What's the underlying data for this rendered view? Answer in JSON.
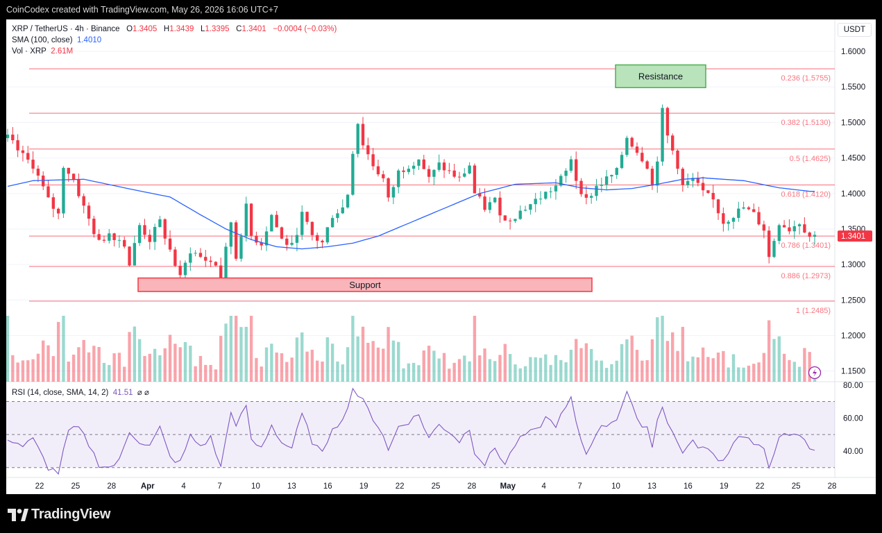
{
  "header": {
    "credit": "CoinCodex created with TradingView.com, May 26, 2026 16:06 UTC+7"
  },
  "legend": {
    "symbol": "XRP / TetherUS · 4h · Binance",
    "o_label": "O",
    "o_value": "1.3405",
    "h_label": "H",
    "h_value": "1.3439",
    "l_label": "L",
    "l_value": "1.3395",
    "c_label": "C",
    "c_value": "1.3401",
    "change": "−0.0004 (−0.03%)",
    "sma_label": "SMA (100, close)",
    "sma_value": "1.4010",
    "vol_label": "Vol · XRP",
    "vol_value": "2.61M"
  },
  "currency": "USDT",
  "rsi_legend": {
    "label": "RSI (14, close, SMA, 14, 2)",
    "value": "41.51",
    "extra": "⌀ ⌀"
  },
  "branding": {
    "logo_text": "TradingView",
    "logo_icon": "tradingview-logo-icon"
  },
  "colors": {
    "up": "#22ab94",
    "down": "#f23645",
    "sma": "#2962ff",
    "rsi": "#7e57c2",
    "fib": "#f7525f",
    "support": "#f23645",
    "resistance": "#4caf50"
  },
  "chart_data": {
    "type": "candlestick",
    "timeframe": "4h",
    "price_axis": {
      "ticks": [
        "1.6000",
        "1.5500",
        "1.5000",
        "1.4500",
        "1.4000",
        "1.3500",
        "1.3000",
        "1.2500",
        "1.2000",
        "1.1500"
      ],
      "range": [
        1.135,
        1.645
      ]
    },
    "last_price": "1.3401",
    "x_ticks": [
      "22",
      "25",
      "28",
      "Apr",
      "4",
      "7",
      "10",
      "13",
      "16",
      "19",
      "22",
      "25",
      "28",
      "May",
      "4",
      "7",
      "10",
      "13",
      "16",
      "19",
      "22",
      "25",
      "28"
    ],
    "fib_levels": [
      {
        "label": "0.236 (1.5755)",
        "value": 1.5755
      },
      {
        "label": "0.382 (1.5130)",
        "value": 1.513
      },
      {
        "label": "0.5 (1.4625)",
        "value": 1.4625
      },
      {
        "label": "0.618 (1.4120)",
        "value": 1.412
      },
      {
        "label": "0.786 (1.3401)",
        "value": 1.3401
      },
      {
        "label": "0.886 (1.2973)",
        "value": 1.2973
      },
      {
        "label": "1 (1.2485)",
        "value": 1.2485
      }
    ],
    "zones": [
      {
        "label": "Resistance",
        "top": 1.581,
        "bottom": 1.549
      },
      {
        "label": "Support",
        "top": 1.281,
        "bottom": 1.262
      }
    ],
    "close_path": [
      [
        0,
        1.478
      ],
      [
        3,
        1.452
      ],
      [
        5,
        1.44
      ],
      [
        8,
        1.39
      ],
      [
        10,
        1.37
      ],
      [
        11,
        1.44
      ],
      [
        13,
        1.42
      ],
      [
        15,
        1.38
      ],
      [
        18,
        1.33
      ],
      [
        20,
        1.345
      ],
      [
        23,
        1.33
      ],
      [
        24,
        1.3
      ],
      [
        26,
        1.355
      ],
      [
        28,
        1.335
      ],
      [
        30,
        1.36
      ],
      [
        33,
        1.3
      ],
      [
        34,
        1.28
      ],
      [
        36,
        1.32
      ],
      [
        38,
        1.31
      ],
      [
        41,
        1.3
      ],
      [
        42,
        1.28
      ],
      [
        44,
        1.36
      ],
      [
        45,
        1.31
      ],
      [
        47,
        1.38
      ],
      [
        48,
        1.34
      ],
      [
        50,
        1.33
      ],
      [
        52,
        1.37
      ],
      [
        54,
        1.335
      ],
      [
        56,
        1.325
      ],
      [
        58,
        1.37
      ],
      [
        60,
        1.34
      ],
      [
        62,
        1.33
      ],
      [
        64,
        1.37
      ],
      [
        66,
        1.38
      ],
      [
        67,
        1.4
      ],
      [
        68,
        1.46
      ],
      [
        69,
        1.5
      ],
      [
        70,
        1.47
      ],
      [
        72,
        1.44
      ],
      [
        74,
        1.42
      ],
      [
        75,
        1.39
      ],
      [
        77,
        1.43
      ],
      [
        79,
        1.44
      ],
      [
        81,
        1.45
      ],
      [
        83,
        1.42
      ],
      [
        85,
        1.44
      ],
      [
        87,
        1.43
      ],
      [
        89,
        1.42
      ],
      [
        91,
        1.44
      ],
      [
        92,
        1.4
      ],
      [
        94,
        1.38
      ],
      [
        96,
        1.39
      ],
      [
        98,
        1.36
      ],
      [
        100,
        1.37
      ],
      [
        102,
        1.38
      ],
      [
        104,
        1.39
      ],
      [
        106,
        1.4
      ],
      [
        108,
        1.41
      ],
      [
        110,
        1.43
      ],
      [
        111,
        1.45
      ],
      [
        112,
        1.42
      ],
      [
        114,
        1.39
      ],
      [
        116,
        1.41
      ],
      [
        118,
        1.42
      ],
      [
        120,
        1.43
      ],
      [
        122,
        1.48
      ],
      [
        124,
        1.46
      ],
      [
        126,
        1.44
      ],
      [
        127,
        1.41
      ],
      [
        128,
        1.45
      ],
      [
        129,
        1.515
      ],
      [
        130,
        1.48
      ],
      [
        132,
        1.44
      ],
      [
        133,
        1.41
      ],
      [
        135,
        1.42
      ],
      [
        137,
        1.4
      ],
      [
        139,
        1.39
      ],
      [
        141,
        1.36
      ],
      [
        143,
        1.37
      ],
      [
        145,
        1.38
      ],
      [
        147,
        1.37
      ],
      [
        149,
        1.35
      ],
      [
        150,
        1.31
      ],
      [
        152,
        1.36
      ],
      [
        154,
        1.35
      ],
      [
        156,
        1.36
      ],
      [
        158,
        1.34
      ]
    ],
    "sma_path": [
      [
        0,
        1.41
      ],
      [
        5,
        1.418
      ],
      [
        15,
        1.42
      ],
      [
        25,
        1.405
      ],
      [
        32,
        1.395
      ],
      [
        38,
        1.37
      ],
      [
        43,
        1.35
      ],
      [
        48,
        1.335
      ],
      [
        53,
        1.325
      ],
      [
        58,
        1.322
      ],
      [
        63,
        1.325
      ],
      [
        68,
        1.33
      ],
      [
        73,
        1.34
      ],
      [
        78,
        1.355
      ],
      [
        83,
        1.37
      ],
      [
        88,
        1.385
      ],
      [
        93,
        1.4
      ],
      [
        100,
        1.413
      ],
      [
        108,
        1.415
      ],
      [
        113,
        1.408
      ],
      [
        118,
        1.405
      ],
      [
        123,
        1.407
      ],
      [
        128,
        1.413
      ],
      [
        133,
        1.42
      ],
      [
        137,
        1.422
      ],
      [
        145,
        1.418
      ],
      [
        152,
        1.408
      ],
      [
        158,
        1.403
      ]
    ],
    "volume_axis_max": 14,
    "rsi": {
      "ticks": [
        "80.00",
        "60.00",
        "40.00"
      ],
      "upper": 70,
      "mid": 50,
      "lower": 30,
      "range": [
        24,
        82
      ],
      "value": 41.51
    },
    "rsi_path": [
      [
        0,
        48
      ],
      [
        3,
        43
      ],
      [
        5,
        47
      ],
      [
        8,
        30
      ],
      [
        10,
        27
      ],
      [
        12,
        52
      ],
      [
        14,
        54
      ],
      [
        16,
        44
      ],
      [
        18,
        32
      ],
      [
        20,
        30
      ],
      [
        22,
        34
      ],
      [
        24,
        52
      ],
      [
        26,
        46
      ],
      [
        28,
        43
      ],
      [
        30,
        54
      ],
      [
        32,
        36
      ],
      [
        34,
        33
      ],
      [
        36,
        49
      ],
      [
        38,
        43
      ],
      [
        40,
        48
      ],
      [
        42,
        30
      ],
      [
        44,
        65
      ],
      [
        45,
        54
      ],
      [
        47,
        68
      ],
      [
        48,
        46
      ],
      [
        50,
        42
      ],
      [
        52,
        56
      ],
      [
        54,
        45
      ],
      [
        56,
        42
      ],
      [
        58,
        62
      ],
      [
        60,
        46
      ],
      [
        62,
        38
      ],
      [
        64,
        55
      ],
      [
        66,
        58
      ],
      [
        67,
        68
      ],
      [
        68,
        78
      ],
      [
        69,
        74
      ],
      [
        70,
        70
      ],
      [
        72,
        60
      ],
      [
        74,
        50
      ],
      [
        75,
        40
      ],
      [
        77,
        55
      ],
      [
        79,
        58
      ],
      [
        81,
        62
      ],
      [
        83,
        48
      ],
      [
        85,
        56
      ],
      [
        87,
        52
      ],
      [
        89,
        46
      ],
      [
        91,
        54
      ],
      [
        92,
        40
      ],
      [
        94,
        32
      ],
      [
        96,
        42
      ],
      [
        98,
        32
      ],
      [
        100,
        44
      ],
      [
        102,
        50
      ],
      [
        104,
        52
      ],
      [
        106,
        60
      ],
      [
        108,
        56
      ],
      [
        110,
        66
      ],
      [
        111,
        72
      ],
      [
        112,
        56
      ],
      [
        114,
        38
      ],
      [
        116,
        52
      ],
      [
        118,
        56
      ],
      [
        120,
        60
      ],
      [
        122,
        76
      ],
      [
        124,
        58
      ],
      [
        126,
        55
      ],
      [
        127,
        42
      ],
      [
        128,
        60
      ],
      [
        129,
        68
      ],
      [
        130,
        57
      ],
      [
        132,
        45
      ],
      [
        133,
        40
      ],
      [
        135,
        45
      ],
      [
        137,
        42
      ],
      [
        139,
        38
      ],
      [
        141,
        34
      ],
      [
        143,
        46
      ],
      [
        145,
        50
      ],
      [
        147,
        44
      ],
      [
        149,
        40
      ],
      [
        150,
        30
      ],
      [
        152,
        50
      ],
      [
        154,
        48
      ],
      [
        156,
        50
      ],
      [
        158,
        41.5
      ]
    ]
  }
}
